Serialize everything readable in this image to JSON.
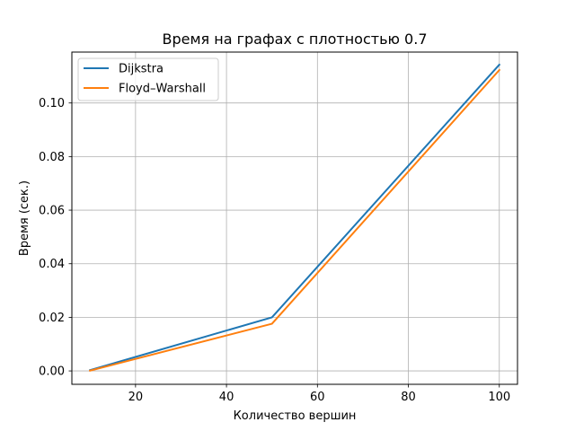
{
  "chart_data": {
    "type": "line",
    "title": "Время на графах с плотностью 0.7",
    "xlabel": "Количество вершин",
    "ylabel": "Время (сек.)",
    "xlim": [
      6,
      104
    ],
    "ylim": [
      -0.005,
      0.119
    ],
    "x_ticks": [
      20,
      40,
      60,
      80,
      100
    ],
    "x_tick_labels": [
      "20",
      "40",
      "60",
      "80",
      "100"
    ],
    "y_ticks": [
      0.0,
      0.02,
      0.04,
      0.06,
      0.08,
      0.1
    ],
    "y_tick_labels": [
      "0.00",
      "0.02",
      "0.04",
      "0.06",
      "0.08",
      "0.10"
    ],
    "grid": true,
    "legend_position": "top-left",
    "series": [
      {
        "name": "Dijkstra",
        "color": "#1f77b4",
        "x": [
          10,
          50,
          100
        ],
        "y": [
          0.0003,
          0.02,
          0.1143
        ]
      },
      {
        "name": "Floyd–Warshall",
        "color": "#ff7f0e",
        "x": [
          10,
          50,
          100
        ],
        "y": [
          0.0001,
          0.0176,
          0.1123
        ]
      }
    ]
  }
}
